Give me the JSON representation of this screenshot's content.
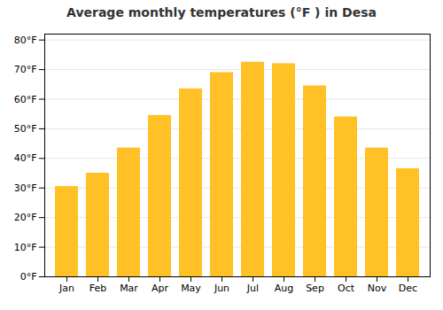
{
  "chart_data": {
    "type": "bar",
    "title": "Average monthly temperatures (°F ) in Desa",
    "categories": [
      "Jan",
      "Feb",
      "Mar",
      "Apr",
      "May",
      "Jun",
      "Jul",
      "Aug",
      "Sep",
      "Oct",
      "Nov",
      "Dec"
    ],
    "values": [
      30.5,
      35.0,
      43.5,
      54.5,
      63.5,
      69.0,
      72.5,
      72.0,
      64.5,
      54.0,
      43.5,
      36.5
    ],
    "color": "#FFC125",
    "ylim": [
      0,
      82
    ],
    "yticks": [
      {
        "value": 0,
        "label": "0°F"
      },
      {
        "value": 10,
        "label": "10°F"
      },
      {
        "value": 20,
        "label": "20°F"
      },
      {
        "value": 30,
        "label": "30°F"
      },
      {
        "value": 40,
        "label": "40°F"
      },
      {
        "value": 50,
        "label": "50°F"
      },
      {
        "value": 60,
        "label": "60°F"
      },
      {
        "value": 70,
        "label": "70°F"
      },
      {
        "value": 80,
        "label": "80°F"
      }
    ],
    "grid": true
  }
}
